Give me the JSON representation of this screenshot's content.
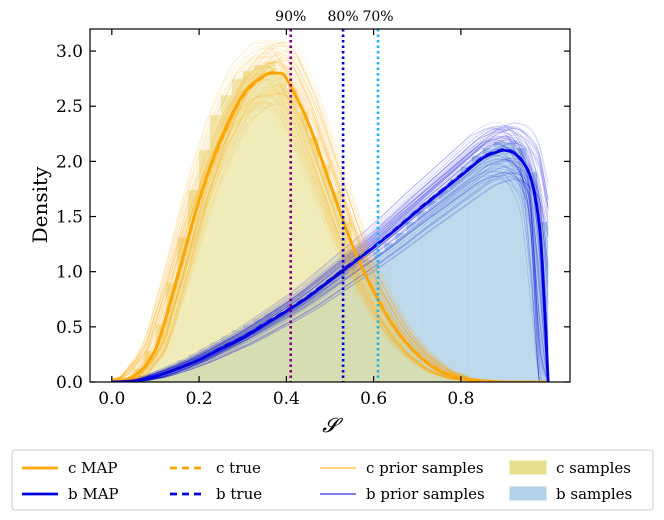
{
  "chart_data": {
    "type": "area",
    "xlabel": "𝓢",
    "ylabel": "Density",
    "xlim": [
      -0.05,
      1.05
    ],
    "ylim": [
      0,
      3.2
    ],
    "xticks": [
      {
        "value": 0.0,
        "label": "0.0"
      },
      {
        "value": 0.2,
        "label": "0.2"
      },
      {
        "value": 0.4,
        "label": "0.4"
      },
      {
        "value": 0.6,
        "label": "0.6"
      },
      {
        "value": 0.8,
        "label": "0.8"
      }
    ],
    "yticks": [
      {
        "value": 0.0,
        "label": "0.0"
      },
      {
        "value": 0.5,
        "label": "0.5"
      },
      {
        "value": 1.0,
        "label": "1.0"
      },
      {
        "value": 1.5,
        "label": "1.5"
      },
      {
        "value": 2.0,
        "label": "2.0"
      },
      {
        "value": 2.5,
        "label": "2.5"
      },
      {
        "value": 3.0,
        "label": "3.0"
      }
    ],
    "grid": false,
    "vertical_lines": [
      {
        "x": 0.41,
        "label": "90%",
        "color": "#800080"
      },
      {
        "x": 0.53,
        "label": "80%",
        "color": "#0000cc"
      },
      {
        "x": 0.61,
        "label": "70%",
        "color": "#1eb4f0"
      }
    ],
    "series": [
      {
        "name": "c samples",
        "kind": "histogram",
        "color": "#e6e08c",
        "bin_width": 0.025,
        "bin_starts": [
          -0.025,
          0.0,
          0.025,
          0.05,
          0.075,
          0.1,
          0.125,
          0.15,
          0.175,
          0.2,
          0.225,
          0.25,
          0.275,
          0.3,
          0.325,
          0.35,
          0.375,
          0.4,
          0.425,
          0.45,
          0.475,
          0.5,
          0.525,
          0.55,
          0.575,
          0.6,
          0.625,
          0.65,
          0.675,
          0.7,
          0.725,
          0.75,
          0.775,
          0.8,
          0.825,
          0.85
        ],
        "values": [
          0.0,
          0.01,
          0.04,
          0.12,
          0.28,
          0.52,
          0.9,
          1.31,
          1.74,
          2.1,
          2.42,
          2.6,
          2.75,
          2.82,
          2.87,
          2.9,
          2.8,
          2.66,
          2.45,
          2.22,
          1.97,
          1.73,
          1.45,
          1.17,
          0.92,
          0.73,
          0.56,
          0.41,
          0.27,
          0.18,
          0.11,
          0.06,
          0.03,
          0.02,
          0.01,
          0.0
        ]
      },
      {
        "name": "b samples",
        "kind": "histogram",
        "color": "#b2d2e8",
        "bin_width": 0.025,
        "bin_starts": [
          0.0,
          0.025,
          0.05,
          0.075,
          0.1,
          0.125,
          0.15,
          0.175,
          0.2,
          0.225,
          0.25,
          0.275,
          0.3,
          0.325,
          0.35,
          0.375,
          0.4,
          0.425,
          0.45,
          0.475,
          0.5,
          0.525,
          0.55,
          0.575,
          0.6,
          0.625,
          0.65,
          0.675,
          0.7,
          0.725,
          0.75,
          0.775,
          0.8,
          0.825,
          0.85,
          0.875,
          0.9,
          0.925,
          0.95,
          0.975
        ],
        "values": [
          0.0,
          0.01,
          0.03,
          0.06,
          0.1,
          0.15,
          0.2,
          0.25,
          0.3,
          0.36,
          0.42,
          0.47,
          0.52,
          0.57,
          0.62,
          0.66,
          0.71,
          0.76,
          0.82,
          0.87,
          0.93,
          0.99,
          1.05,
          1.11,
          1.18,
          1.26,
          1.35,
          1.45,
          1.55,
          1.64,
          1.74,
          1.84,
          1.95,
          2.05,
          2.12,
          2.18,
          2.17,
          2.12,
          1.9,
          1.45
        ]
      },
      {
        "name": "c prior samples",
        "kind": "line-bundle",
        "color": "#ffa500",
        "center": "c MAP",
        "count": 90,
        "spread": 0.22
      },
      {
        "name": "b prior samples",
        "kind": "line-bundle",
        "color": "#0000e0",
        "center": "b MAP",
        "count": 90,
        "spread": 0.25
      },
      {
        "name": "c MAP",
        "kind": "line",
        "color": "#ffa500",
        "x": [
          0.0,
          0.05,
          0.1,
          0.15,
          0.2,
          0.25,
          0.3,
          0.35,
          0.38,
          0.4,
          0.45,
          0.5,
          0.55,
          0.6,
          0.65,
          0.7,
          0.75,
          0.8,
          0.85,
          0.9,
          1.0
        ],
        "y": [
          0.0,
          0.05,
          0.3,
          0.95,
          1.65,
          2.2,
          2.6,
          2.78,
          2.8,
          2.75,
          2.35,
          1.8,
          1.25,
          0.82,
          0.48,
          0.25,
          0.1,
          0.03,
          0.01,
          0.0,
          0.0
        ]
      },
      {
        "name": "c true",
        "kind": "line",
        "style": "dashed",
        "color": "#ffa500",
        "x": [
          0.0,
          0.05,
          0.1,
          0.15,
          0.2,
          0.25,
          0.3,
          0.35,
          0.38,
          0.4,
          0.45,
          0.5,
          0.55,
          0.6,
          0.65,
          0.7,
          0.75,
          0.8,
          0.85,
          0.9,
          1.0
        ],
        "y": [
          0.0,
          0.05,
          0.29,
          0.93,
          1.63,
          2.18,
          2.58,
          2.77,
          2.79,
          2.75,
          2.36,
          1.81,
          1.26,
          0.83,
          0.49,
          0.26,
          0.11,
          0.03,
          0.01,
          0.0,
          0.0
        ]
      },
      {
        "name": "b MAP",
        "kind": "line",
        "color": "#0000e0",
        "x": [
          0.0,
          0.05,
          0.1,
          0.15,
          0.2,
          0.25,
          0.3,
          0.35,
          0.4,
          0.45,
          0.5,
          0.55,
          0.6,
          0.65,
          0.7,
          0.75,
          0.8,
          0.85,
          0.88,
          0.9,
          0.93,
          0.96,
          0.98,
          0.99,
          1.0
        ],
        "y": [
          0.0,
          0.01,
          0.05,
          0.12,
          0.2,
          0.3,
          0.4,
          0.52,
          0.64,
          0.77,
          0.92,
          1.07,
          1.22,
          1.38,
          1.55,
          1.71,
          1.87,
          2.03,
          2.08,
          2.1,
          2.05,
          1.85,
          1.4,
          0.8,
          0.0
        ]
      },
      {
        "name": "b true",
        "kind": "line",
        "style": "dashed",
        "color": "#0000e0",
        "x": [
          0.0,
          0.05,
          0.1,
          0.15,
          0.2,
          0.25,
          0.3,
          0.35,
          0.4,
          0.45,
          0.5,
          0.55,
          0.6,
          0.65,
          0.7,
          0.75,
          0.8,
          0.85,
          0.88,
          0.9,
          0.93,
          0.96,
          0.98,
          0.99,
          1.0
        ],
        "y": [
          0.0,
          0.01,
          0.05,
          0.12,
          0.2,
          0.31,
          0.41,
          0.53,
          0.65,
          0.78,
          0.93,
          1.08,
          1.23,
          1.39,
          1.56,
          1.72,
          1.88,
          2.04,
          2.09,
          2.11,
          2.06,
          1.86,
          1.41,
          0.81,
          0.0
        ]
      }
    ],
    "legend": {
      "placement": "bottom",
      "entries": [
        {
          "label": "c MAP",
          "kind": "line",
          "color": "#ffa500"
        },
        {
          "label": "c true",
          "kind": "dashed",
          "color": "#ffa500"
        },
        {
          "label": "c prior samples",
          "kind": "thin",
          "color": "#ffa500"
        },
        {
          "label": "c samples",
          "kind": "patch",
          "color": "#e6e08c"
        },
        {
          "label": "b MAP",
          "kind": "line",
          "color": "#0000e0"
        },
        {
          "label": "b true",
          "kind": "dashed",
          "color": "#0000e0"
        },
        {
          "label": "b prior samples",
          "kind": "thin",
          "color": "#0000e0"
        },
        {
          "label": "b samples",
          "kind": "patch",
          "color": "#b2d2e8"
        }
      ]
    }
  }
}
